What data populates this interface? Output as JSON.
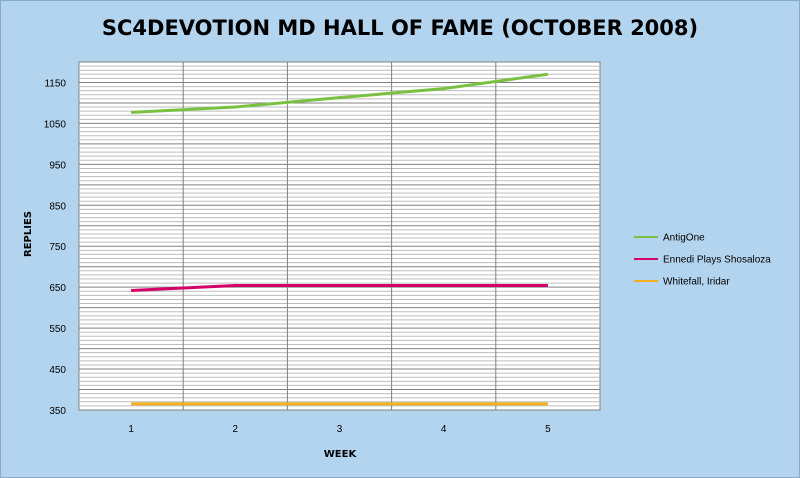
{
  "chart_data": {
    "type": "line",
    "title": "SC4DEVOTION MD HALL OF FAME (OCTOBER 2008)",
    "xlabel": "WEEK",
    "ylabel": "REPLIES",
    "categories": [
      "1",
      "2",
      "3",
      "4",
      "5"
    ],
    "ylim": [
      350,
      1200
    ],
    "yticks": [
      350,
      450,
      550,
      650,
      750,
      850,
      950,
      1050,
      1150
    ],
    "grid": true,
    "legend_position": "right",
    "series": [
      {
        "name": "AntigOne",
        "color": "#7ac142",
        "values": [
          1077,
          1090,
          1113,
          1135,
          1170
        ]
      },
      {
        "name": "Ennedi Plays  Shosaloza",
        "color": "#d4006a",
        "values": [
          642,
          654,
          654,
          654,
          654
        ]
      },
      {
        "name": "Whitefall, Iridar",
        "color": "#f2b020",
        "values": [
          365,
          365,
          365,
          365,
          365
        ]
      }
    ]
  }
}
